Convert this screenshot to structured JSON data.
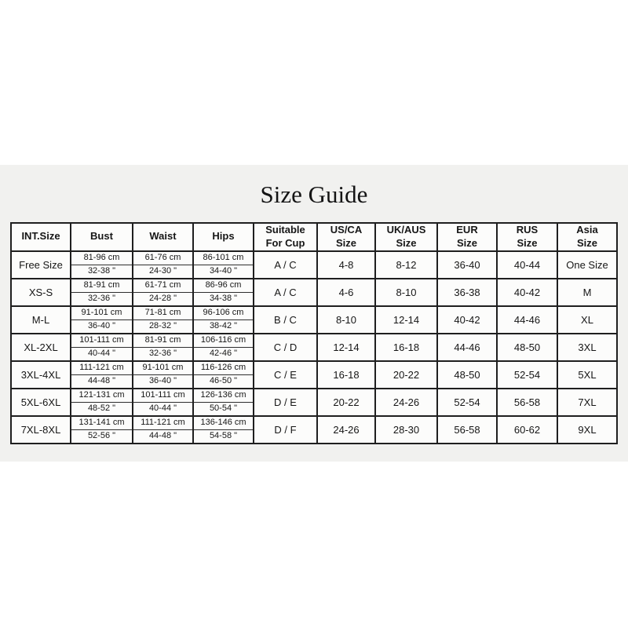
{
  "title": "Size Guide",
  "colors": {
    "panel_bg": "#f1f1ef",
    "table_bg": "#fcfcfb",
    "border": "#1f1f1f",
    "text": "#161616"
  },
  "table": {
    "columns": [
      "INT.Size",
      "Bust",
      "Waist",
      "Hips",
      "Suitable\nFor Cup",
      "US/CA\nSize",
      "UK/AUS\nSize",
      "EUR\nSize",
      "RUS\nSize",
      "Asia\nSize"
    ],
    "rows": [
      {
        "int_size": "Free Size",
        "bust_cm": "81-96 cm",
        "waist_cm": "61-76 cm",
        "hips_cm": "86-101 cm",
        "bust_in": "32-38 \"",
        "waist_in": "24-30 \"",
        "hips_in": "34-40 \"",
        "cup": "A / C",
        "us_ca": "4-8",
        "uk_aus": "8-12",
        "eur": "36-40",
        "rus": "40-44",
        "asia": "One Size"
      },
      {
        "int_size": "XS-S",
        "bust_cm": "81-91 cm",
        "waist_cm": "61-71 cm",
        "hips_cm": "86-96 cm",
        "bust_in": "32-36 \"",
        "waist_in": "24-28 \"",
        "hips_in": "34-38 \"",
        "cup": "A / C",
        "us_ca": "4-6",
        "uk_aus": "8-10",
        "eur": "36-38",
        "rus": "40-42",
        "asia": "M"
      },
      {
        "int_size": "M-L",
        "bust_cm": "91-101 cm",
        "waist_cm": "71-81 cm",
        "hips_cm": "96-106 cm",
        "bust_in": "36-40 \"",
        "waist_in": "28-32 \"",
        "hips_in": "38-42 \"",
        "cup": "B / C",
        "us_ca": "8-10",
        "uk_aus": "12-14",
        "eur": "40-42",
        "rus": "44-46",
        "asia": "XL"
      },
      {
        "int_size": "XL-2XL",
        "bust_cm": "101-111 cm",
        "waist_cm": "81-91 cm",
        "hips_cm": "106-116 cm",
        "bust_in": "40-44 \"",
        "waist_in": "32-36 \"",
        "hips_in": "42-46 \"",
        "cup": "C / D",
        "us_ca": "12-14",
        "uk_aus": "16-18",
        "eur": "44-46",
        "rus": "48-50",
        "asia": "3XL"
      },
      {
        "int_size": "3XL-4XL",
        "bust_cm": "111-121 cm",
        "waist_cm": "91-101 cm",
        "hips_cm": "116-126 cm",
        "bust_in": "44-48 \"",
        "waist_in": "36-40 \"",
        "hips_in": "46-50 \"",
        "cup": "C / E",
        "us_ca": "16-18",
        "uk_aus": "20-22",
        "eur": "48-50",
        "rus": "52-54",
        "asia": "5XL"
      },
      {
        "int_size": "5XL-6XL",
        "bust_cm": "121-131 cm",
        "waist_cm": "101-111 cm",
        "hips_cm": "126-136 cm",
        "bust_in": "48-52 \"",
        "waist_in": "40-44 \"",
        "hips_in": "50-54 \"",
        "cup": "D / E",
        "us_ca": "20-22",
        "uk_aus": "24-26",
        "eur": "52-54",
        "rus": "56-58",
        "asia": "7XL"
      },
      {
        "int_size": "7XL-8XL",
        "bust_cm": "131-141 cm",
        "waist_cm": "111-121 cm",
        "hips_cm": "136-146 cm",
        "bust_in": "52-56 \"",
        "waist_in": "44-48 \"",
        "hips_in": "54-58 \"",
        "cup": "D / F",
        "us_ca": "24-26",
        "uk_aus": "28-30",
        "eur": "56-58",
        "rus": "60-62",
        "asia": "9XL"
      }
    ]
  }
}
